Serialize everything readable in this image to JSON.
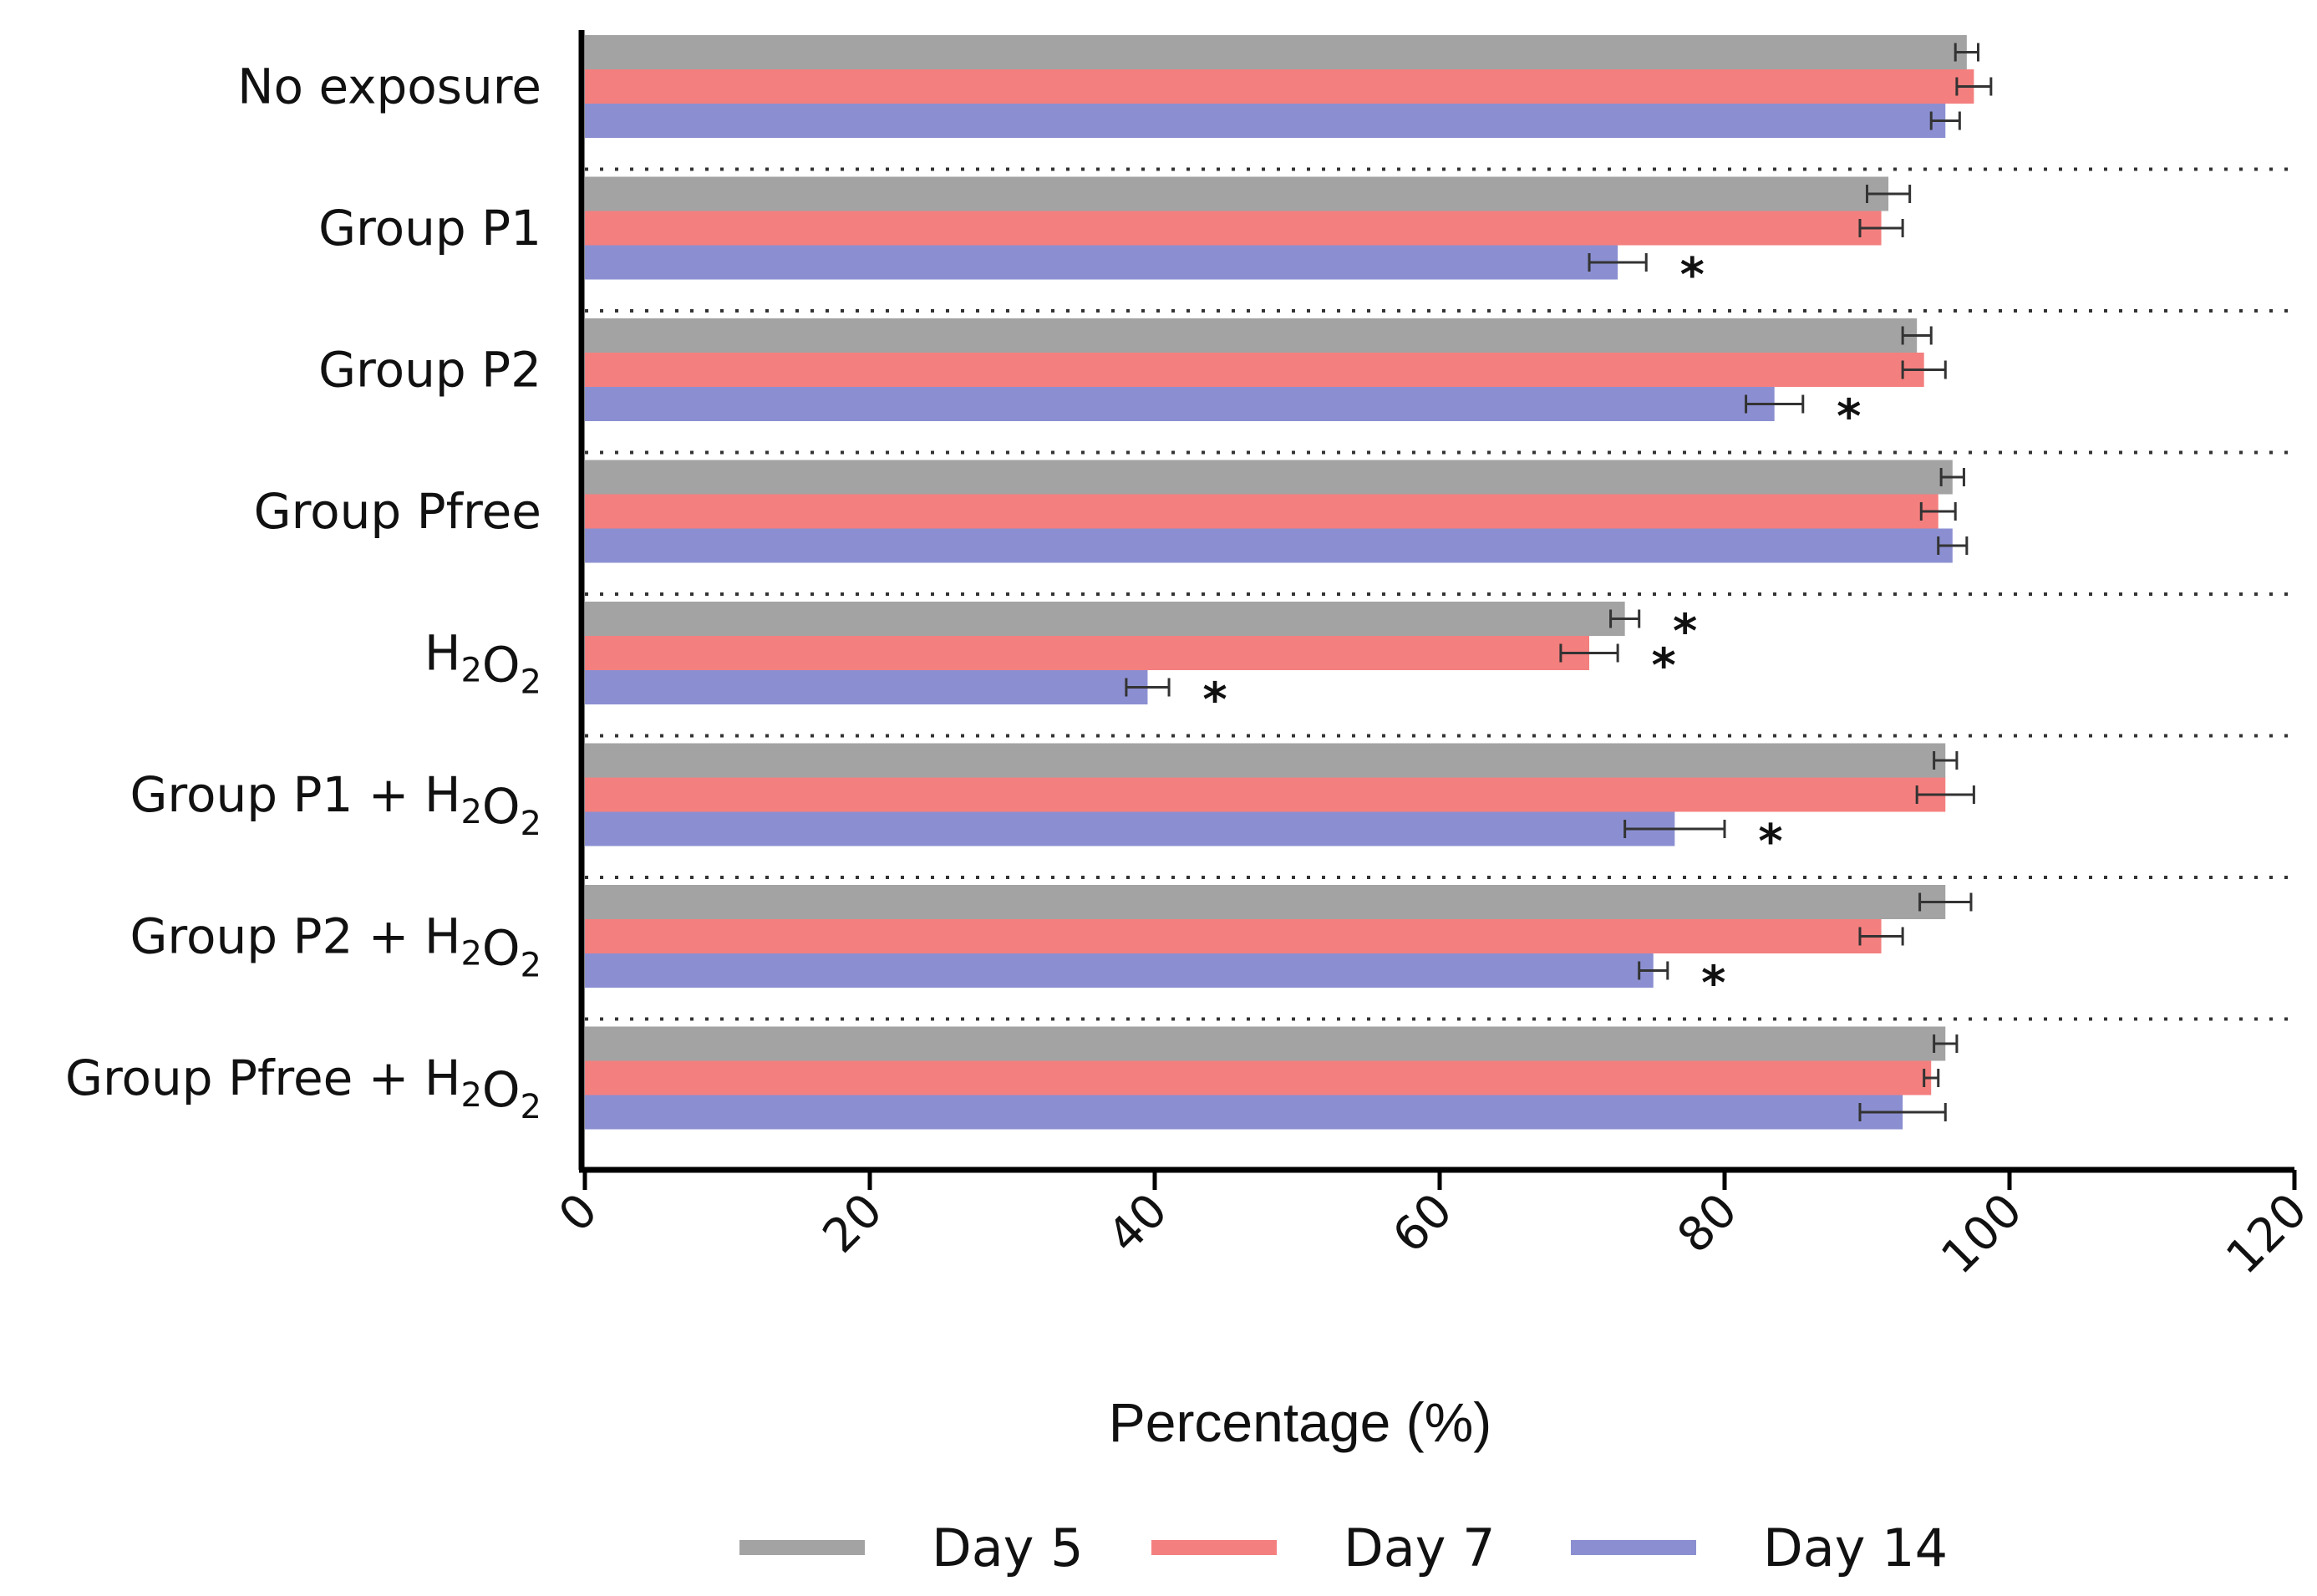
{
  "chart_data": {
    "type": "bar",
    "orientation": "horizontal",
    "xlabel": "Percentage (%)",
    "xlim": [
      0,
      120
    ],
    "xticks": [
      "0",
      "20",
      "40",
      "60",
      "80",
      "100",
      "120"
    ],
    "legend_position": "bottom",
    "categories": [
      {
        "label": "No exposure"
      },
      {
        "label": "Group P1"
      },
      {
        "label": "Group P2"
      },
      {
        "label": "Group Pfree"
      },
      {
        "label": "H",
        "sub1": "2",
        "mid": "O",
        "sub2": "2"
      },
      {
        "label": "Group P1 + H",
        "sub1": "2",
        "mid": "O",
        "sub2": "2"
      },
      {
        "label": "Group P2 + H",
        "sub1": "2",
        "mid": "O",
        "sub2": "2"
      },
      {
        "label": "Group Pfree + H",
        "sub1": "2",
        "mid": "O",
        "sub2": "2"
      }
    ],
    "series": [
      {
        "name": "Day 5",
        "color": "#a3a3a3",
        "values": [
          97,
          91.5,
          93.5,
          96,
          73,
          95.5,
          95.5,
          95.5
        ],
        "errors": [
          0.8,
          1.5,
          1,
          0.8,
          1,
          0.8,
          1.8,
          0.8
        ],
        "significant": [
          false,
          false,
          false,
          false,
          true,
          false,
          false,
          false
        ]
      },
      {
        "name": "Day 7",
        "color": "#f47f7f",
        "values": [
          97.5,
          91,
          94,
          95,
          70.5,
          95.5,
          91,
          94.5
        ],
        "errors": [
          1.2,
          1.5,
          1.5,
          1.2,
          2,
          2,
          1.5,
          0.5
        ],
        "significant": [
          false,
          false,
          false,
          false,
          true,
          false,
          false,
          false
        ]
      },
      {
        "name": "Day 14",
        "color": "#8b8fd1",
        "values": [
          95.5,
          72.5,
          83.5,
          96,
          39.5,
          76.5,
          75,
          92.5
        ],
        "errors": [
          1,
          2,
          2,
          1,
          1.5,
          3.5,
          1,
          3
        ],
        "significant": [
          false,
          true,
          true,
          false,
          true,
          true,
          true,
          false
        ]
      }
    ],
    "significance_marker": "*"
  }
}
